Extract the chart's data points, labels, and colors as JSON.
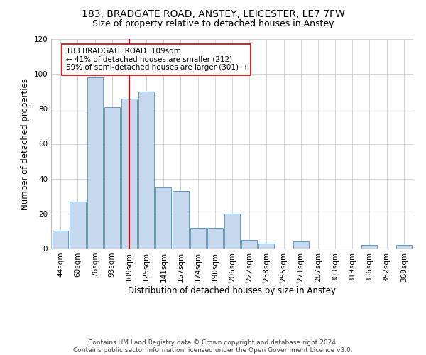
{
  "title": "183, BRADGATE ROAD, ANSTEY, LEICESTER, LE7 7FW",
  "subtitle": "Size of property relative to detached houses in Anstey",
  "xlabel": "Distribution of detached houses by size in Anstey",
  "ylabel": "Number of detached properties",
  "bar_labels": [
    "44sqm",
    "60sqm",
    "76sqm",
    "93sqm",
    "109sqm",
    "125sqm",
    "141sqm",
    "157sqm",
    "174sqm",
    "190sqm",
    "206sqm",
    "222sqm",
    "238sqm",
    "255sqm",
    "271sqm",
    "287sqm",
    "303sqm",
    "319sqm",
    "336sqm",
    "352sqm",
    "368sqm"
  ],
  "bar_values": [
    10,
    27,
    98,
    81,
    86,
    90,
    35,
    33,
    12,
    12,
    20,
    5,
    3,
    0,
    4,
    0,
    0,
    0,
    2,
    0,
    2
  ],
  "bar_color": "#c5d8ed",
  "bar_edge_color": "#5b9bd5",
  "vline_x_index": 4,
  "vline_color": "#cc0000",
  "annotation_lines": [
    "183 BRADGATE ROAD: 109sqm",
    "← 41% of detached houses are smaller (212)",
    "59% of semi-detached houses are larger (301) →"
  ],
  "annotation_box_edge_color": "#cc0000",
  "annotation_box_face_color": "#ffffff",
  "ylim": [
    0,
    120
  ],
  "yticks": [
    0,
    20,
    40,
    60,
    80,
    100,
    120
  ],
  "footer_lines": [
    "Contains HM Land Registry data © Crown copyright and database right 2024.",
    "Contains public sector information licensed under the Open Government Licence v3.0."
  ],
  "bg_color": "#ffffff",
  "grid_color": "#d0d0d0",
  "title_fontsize": 10,
  "subtitle_fontsize": 9,
  "axis_label_fontsize": 8.5,
  "tick_fontsize": 7.5,
  "annotation_fontsize": 7.5,
  "footer_fontsize": 6.5
}
